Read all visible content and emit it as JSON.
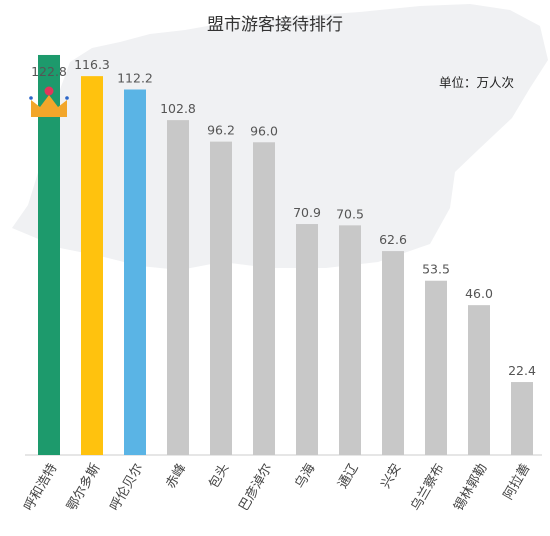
{
  "chart_data": {
    "type": "bar",
    "title": "盟市游客接待排行",
    "unit_label": "单位：万人次",
    "categories": [
      "呼和浩特",
      "鄂尔多斯",
      "呼伦贝尔",
      "赤峰",
      "包头",
      "巴彦淖尔",
      "乌海",
      "通辽",
      "兴安",
      "乌兰察布",
      "锡林郭勒",
      "阿拉善"
    ],
    "values": [
      122.8,
      116.3,
      112.2,
      102.8,
      96.2,
      96.0,
      70.9,
      70.5,
      62.6,
      53.5,
      46.0,
      22.4
    ],
    "value_labels": [
      "122.8",
      "116.3",
      "112.2",
      "102.8",
      "96.2",
      "96.0",
      "70.9",
      "70.5",
      "62.6",
      "53.5",
      "46.0",
      "22.4"
    ],
    "ylim": [
      0,
      132
    ],
    "grid": false,
    "colors": {
      "rank1": "#1d9a6c",
      "rank2": "#ffc20e",
      "rank3": "#5ab4e5",
      "other": "#c8c8c8",
      "crown": "#f2a62a",
      "crown_jewel": "#e2365b",
      "map": "#f0f1f3"
    },
    "decorations": {
      "crown_icon": "crown-icon"
    }
  }
}
